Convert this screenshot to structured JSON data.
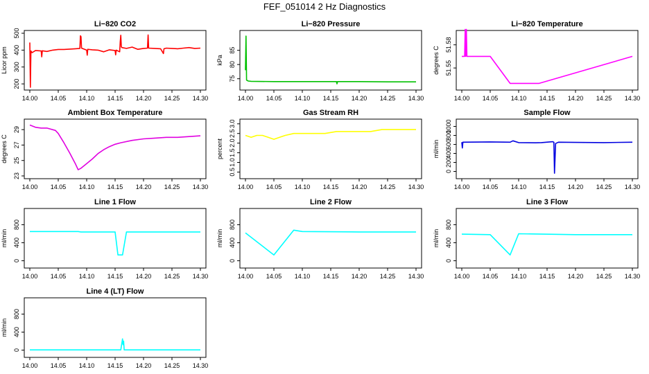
{
  "figure_title": "FEF_051014  2 Hz Diagnostics",
  "chart_data": [
    {
      "type": "line",
      "title": "Li−820 CO2",
      "ylabel": "Licor ppm",
      "xlim": [
        14.0,
        14.3
      ],
      "ylim": [
        180,
        500
      ],
      "yticks": [
        "200",
        "300",
        "400",
        "500"
      ],
      "xticks": [
        "14.00",
        "14.05",
        "14.10",
        "14.15",
        "14.20",
        "14.25",
        "14.30"
      ],
      "color": "#ff0000",
      "series": {
        "x": [
          14.0,
          14.001,
          14.002,
          14.004,
          14.01,
          14.02,
          14.021,
          14.022,
          14.03,
          14.04,
          14.05,
          14.06,
          14.07,
          14.08,
          14.088,
          14.089,
          14.09,
          14.091,
          14.1,
          14.101,
          14.102,
          14.11,
          14.12,
          14.13,
          14.14,
          14.15,
          14.151,
          14.152,
          14.158,
          14.159,
          14.16,
          14.161,
          14.162,
          14.17,
          14.18,
          14.19,
          14.2,
          14.207,
          14.208,
          14.209,
          14.22,
          14.23,
          14.235,
          14.236,
          14.24,
          14.25,
          14.26,
          14.27,
          14.28,
          14.29,
          14.3
        ],
        "y": [
          445,
          180,
          395,
          385,
          398,
          395,
          360,
          396,
          392,
          400,
          404,
          404,
          406,
          408,
          410,
          485,
          480,
          412,
          400,
          370,
          405,
          402,
          400,
          390,
          402,
          398,
          372,
          400,
          390,
          450,
          488,
          420,
          415,
          410,
          418,
          405,
          410,
          412,
          490,
          412,
          410,
          408,
          380,
          408,
          412,
          410,
          408,
          412,
          415,
          410,
          412
        ]
      }
    },
    {
      "type": "line",
      "title": "Li−820 Pressure",
      "ylabel": "kPa",
      "xlim": [
        14.0,
        14.3
      ],
      "ylim": [
        72,
        91
      ],
      "yticks": [
        "75",
        "80",
        "85"
      ],
      "xticks": [
        "14.00",
        "14.05",
        "14.10",
        "14.15",
        "14.20",
        "14.25",
        "14.30"
      ],
      "color": "#00c000",
      "series": {
        "x": [
          14.0,
          14.001,
          14.002,
          14.005,
          14.01,
          14.05,
          14.1,
          14.15,
          14.16,
          14.161,
          14.162,
          14.2,
          14.25,
          14.3
        ],
        "y": [
          78,
          90,
          74.5,
          74.2,
          74.1,
          74.0,
          74.0,
          74.0,
          74.0,
          73.2,
          74.0,
          74.0,
          73.9,
          73.9
        ]
      }
    },
    {
      "type": "line",
      "title": "Li−820 Temperature",
      "ylabel": "degrees C",
      "xlim": [
        14.0,
        14.3
      ],
      "ylim": [
        51.525,
        51.595
      ],
      "yticks": [
        "51.55",
        "51.58"
      ],
      "xticks": [
        "14.00",
        "14.05",
        "14.10",
        "14.15",
        "14.20",
        "14.25",
        "14.30"
      ],
      "color": "#ff00ff",
      "series": {
        "x": [
          14.0,
          14.005,
          14.006,
          14.007,
          14.008,
          14.009,
          14.01,
          14.05,
          14.085,
          14.136,
          14.3
        ],
        "y": [
          51.565,
          51.565,
          51.6,
          51.565,
          51.6,
          51.565,
          51.565,
          51.565,
          51.53,
          51.53,
          51.565
        ]
      }
    },
    {
      "type": "line",
      "title": "Ambient Box Temperature",
      "ylabel": "degrees C",
      "xlim": [
        14.0,
        14.3
      ],
      "ylim": [
        23,
        30
      ],
      "yticks": [
        "23",
        "25",
        "27",
        "29"
      ],
      "xticks": [
        "14.00",
        "14.05",
        "14.10",
        "14.15",
        "14.20",
        "14.25",
        "14.30"
      ],
      "color": "#e000e0",
      "series": {
        "x": [
          14.0,
          14.01,
          14.02,
          14.03,
          14.045,
          14.05,
          14.06,
          14.07,
          14.08,
          14.085,
          14.09,
          14.1,
          14.11,
          14.12,
          14.13,
          14.14,
          14.15,
          14.16,
          14.18,
          14.2,
          14.22,
          14.24,
          14.26,
          14.28,
          14.3
        ],
        "y": [
          29.6,
          29.3,
          29.2,
          29.2,
          28.9,
          28.5,
          27.3,
          26.0,
          24.6,
          23.8,
          24.0,
          24.6,
          25.2,
          25.9,
          26.4,
          26.8,
          27.1,
          27.3,
          27.6,
          27.8,
          27.9,
          28.0,
          28.0,
          28.1,
          28.2
        ]
      }
    },
    {
      "type": "line",
      "title": "Gas Stream RH",
      "ylabel": "percent",
      "xlim": [
        14.0,
        14.3
      ],
      "ylim": [
        0.3,
        3.1
      ],
      "yticks": [
        "0.5",
        "1.0",
        "1.5",
        "2.0",
        "2.5",
        "3.0"
      ],
      "xticks": [
        "14.00",
        "14.05",
        "14.10",
        "14.15",
        "14.20",
        "14.25",
        "14.30"
      ],
      "color": "#ffff00",
      "series": {
        "x": [
          14.0,
          14.01,
          14.02,
          14.03,
          14.04,
          14.05,
          14.06,
          14.07,
          14.085,
          14.1,
          14.12,
          14.14,
          14.16,
          14.18,
          14.2,
          14.22,
          14.24,
          14.26,
          14.28,
          14.3
        ],
        "y": [
          2.4,
          2.3,
          2.4,
          2.4,
          2.3,
          2.2,
          2.3,
          2.4,
          2.5,
          2.5,
          2.5,
          2.5,
          2.6,
          2.6,
          2.6,
          2.6,
          2.7,
          2.7,
          2.7,
          2.7
        ]
      }
    },
    {
      "type": "line",
      "title": "Sample Flow",
      "ylabel": "ml/min",
      "xlim": [
        14.0,
        14.3
      ],
      "ylim": [
        -100,
        1100
      ],
      "yticks": [
        "0",
        "200",
        "400",
        "600",
        "800",
        "1000"
      ],
      "xticks": [
        "14.00",
        "14.05",
        "14.10",
        "14.15",
        "14.20",
        "14.25",
        "14.30"
      ],
      "color": "#0000e0",
      "series": {
        "x": [
          14.0,
          14.001,
          14.002,
          14.05,
          14.085,
          14.09,
          14.1,
          14.13,
          14.14,
          14.16,
          14.162,
          14.163,
          14.165,
          14.17,
          14.2,
          14.25,
          14.3
        ],
        "y": [
          650,
          520,
          650,
          655,
          650,
          680,
          640,
          635,
          640,
          660,
          650,
          -40,
          620,
          650,
          645,
          640,
          650
        ]
      }
    },
    {
      "type": "line",
      "title": "Line 1 Flow",
      "ylabel": "ml/min",
      "xlim": [
        14.0,
        14.3
      ],
      "ylim": [
        -100,
        1100
      ],
      "yticks": [
        "0",
        "400",
        "800"
      ],
      "xticks": [
        "14.00",
        "14.05",
        "14.10",
        "14.15",
        "14.20",
        "14.25",
        "14.30"
      ],
      "color": "#00ffff",
      "series": {
        "x": [
          14.0,
          14.05,
          14.085,
          14.09,
          14.15,
          14.155,
          14.16,
          14.163,
          14.17,
          14.3
        ],
        "y": [
          650,
          650,
          650,
          640,
          640,
          130,
          130,
          130,
          640,
          640
        ]
      }
    },
    {
      "type": "line",
      "title": "Line 2 Flow",
      "ylabel": "ml/min",
      "xlim": [
        14.0,
        14.3
      ],
      "ylim": [
        -100,
        1100
      ],
      "yticks": [
        "0",
        "400",
        "800"
      ],
      "xticks": [
        "14.00",
        "14.05",
        "14.10",
        "14.15",
        "14.20",
        "14.25",
        "14.30"
      ],
      "color": "#00ffff",
      "series": {
        "x": [
          14.0,
          14.05,
          14.085,
          14.1,
          14.2,
          14.3
        ],
        "y": [
          620,
          130,
          680,
          650,
          640,
          640
        ]
      }
    },
    {
      "type": "line",
      "title": "Line 3 Flow",
      "ylabel": "ml/min",
      "xlim": [
        14.0,
        14.3
      ],
      "ylim": [
        -100,
        1100
      ],
      "yticks": [
        "0",
        "400",
        "800"
      ],
      "xticks": [
        "14.00",
        "14.05",
        "14.10",
        "14.15",
        "14.20",
        "14.25",
        "14.30"
      ],
      "color": "#00ffff",
      "series": {
        "x": [
          14.0,
          14.05,
          14.085,
          14.1,
          14.2,
          14.3
        ],
        "y": [
          590,
          580,
          130,
          600,
          580,
          580
        ]
      }
    },
    {
      "type": "line",
      "title": "Line 4 (LT) Flow",
      "ylabel": "ml/min",
      "xlim": [
        14.0,
        14.3
      ],
      "ylim": [
        -100,
        1100
      ],
      "yticks": [
        "0",
        "400",
        "800"
      ],
      "xticks": [
        "14.00",
        "14.05",
        "14.10",
        "14.15",
        "14.20",
        "14.25",
        "14.30"
      ],
      "color": "#00ffff",
      "series": {
        "x": [
          14.0,
          14.16,
          14.163,
          14.164,
          14.165,
          14.166,
          14.17,
          14.3
        ],
        "y": [
          5,
          5,
          250,
          120,
          200,
          5,
          5,
          5
        ]
      }
    }
  ]
}
